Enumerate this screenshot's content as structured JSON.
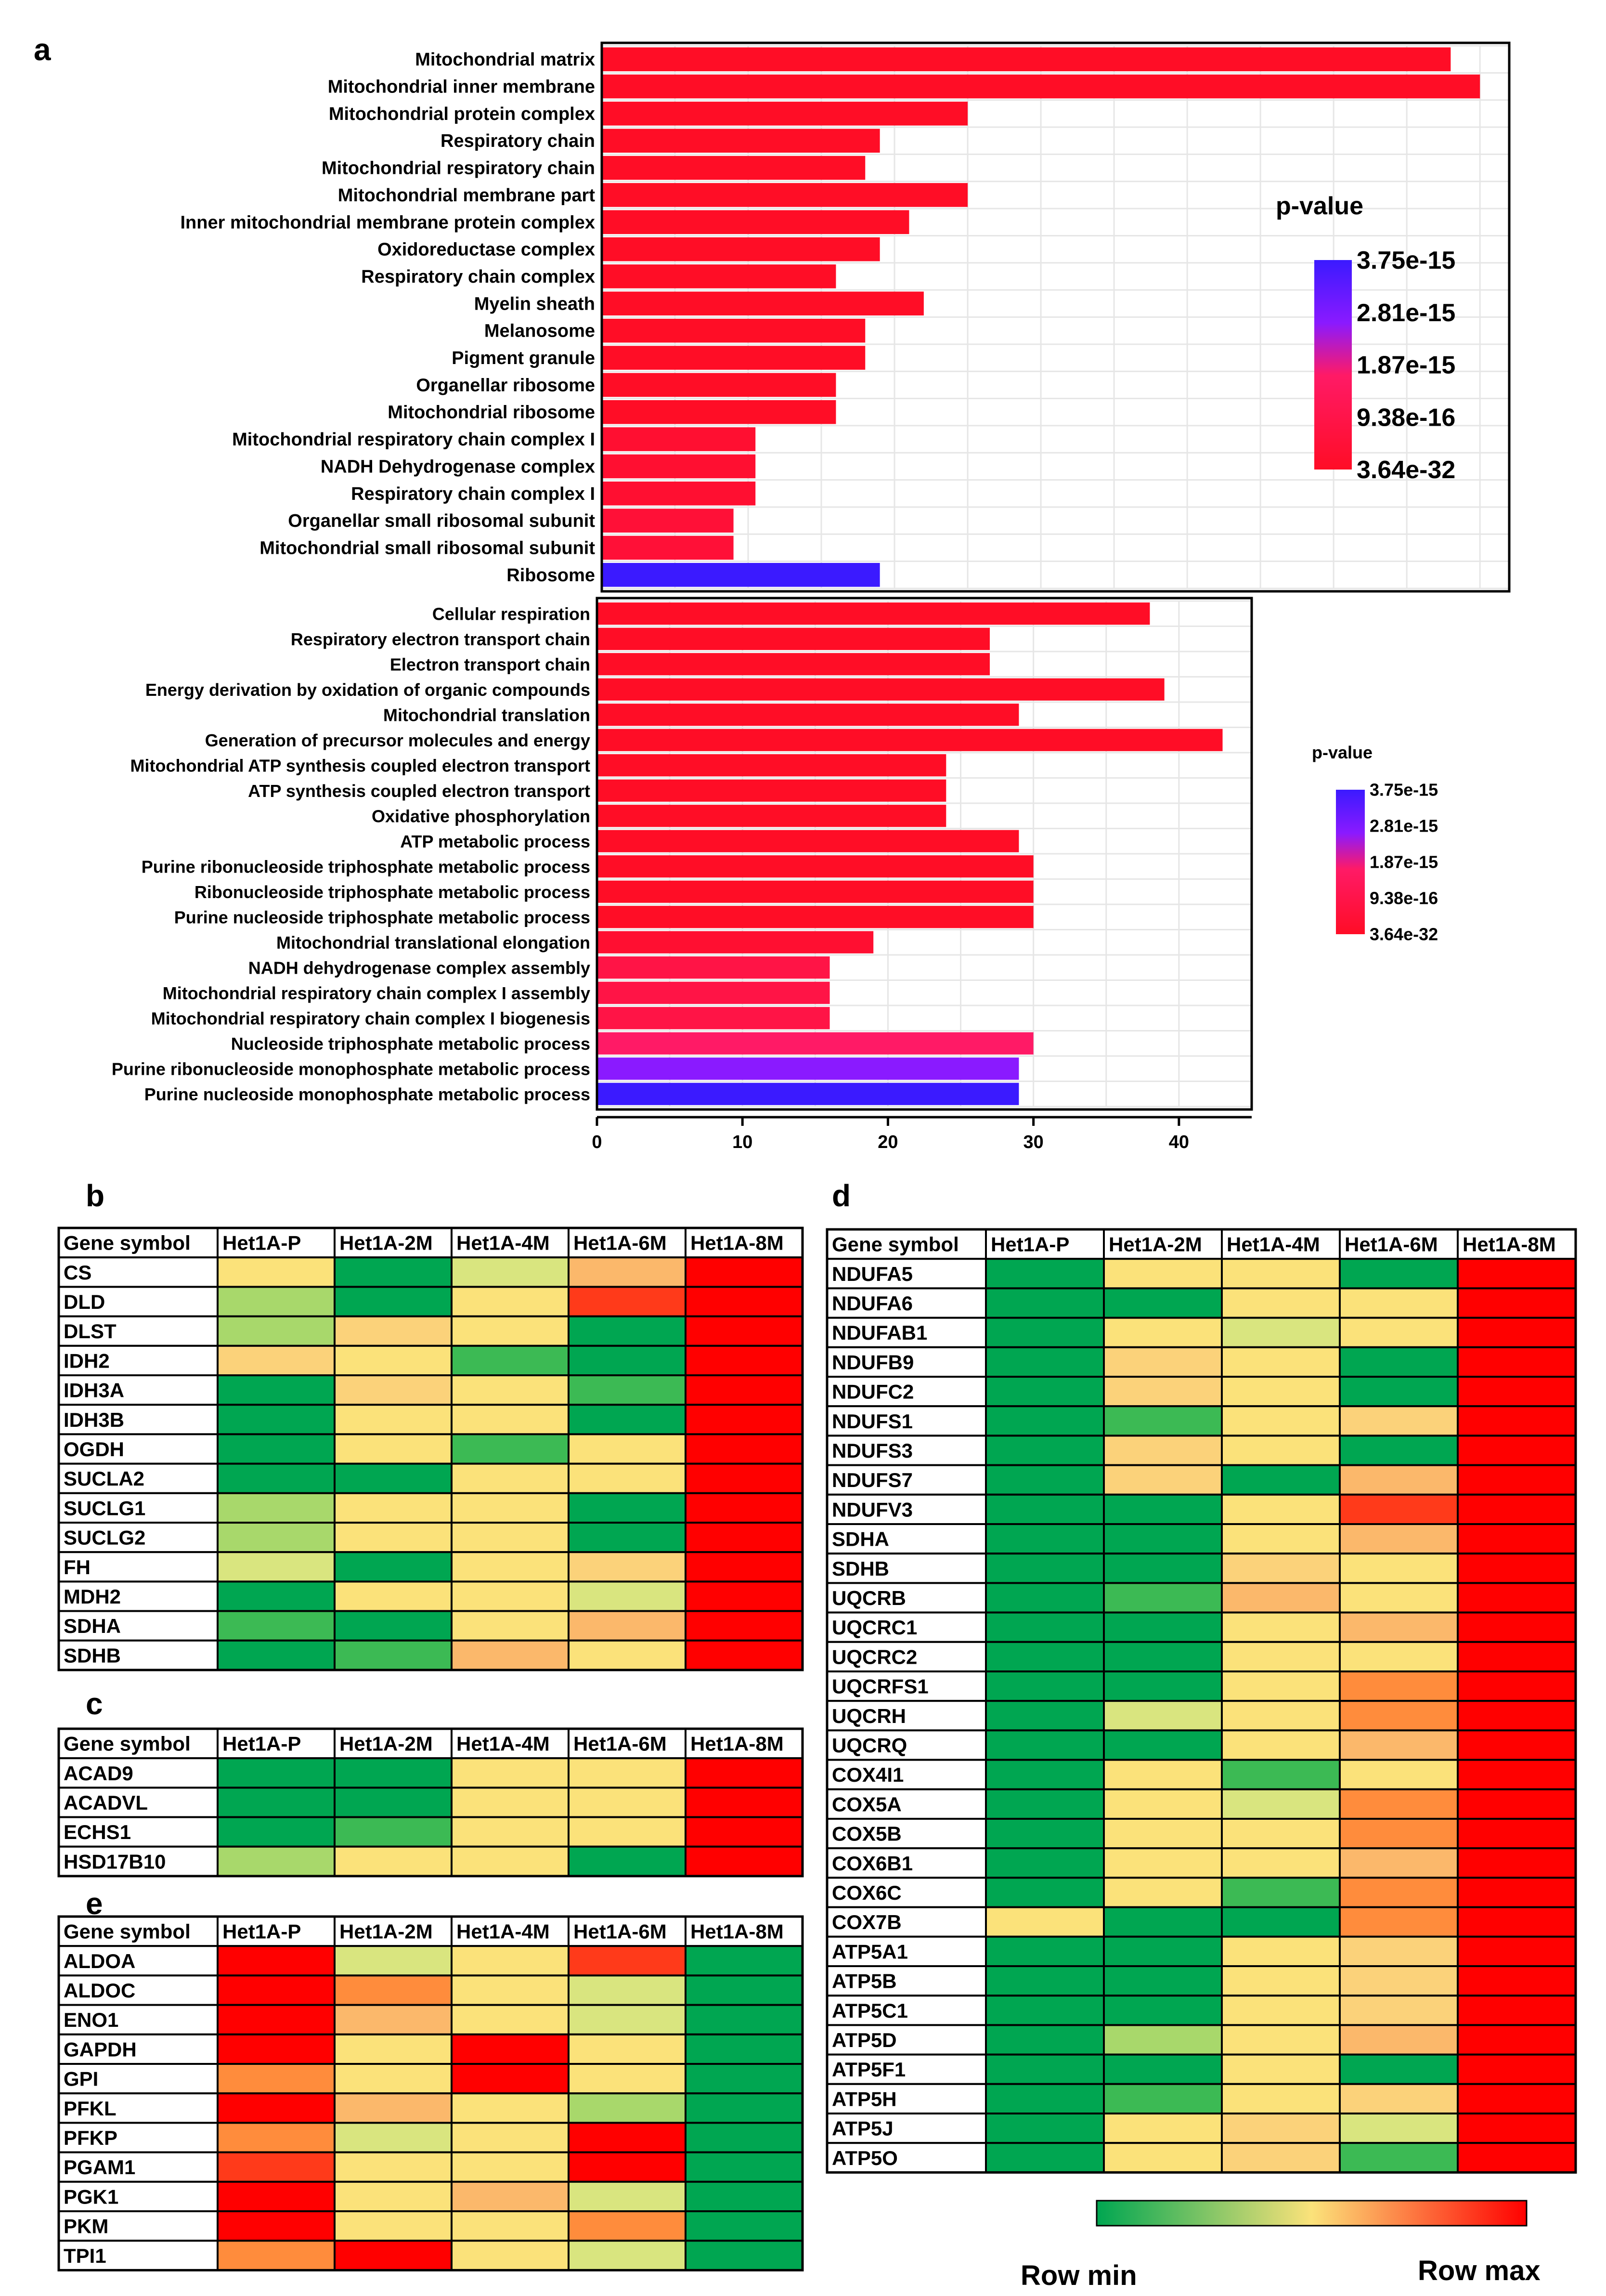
{
  "colors": {
    "p_low": "#ff0d26",
    "p_mid": "#ff1a66",
    "p_high": "#3b1aff",
    "p_purple": "#8a1aff",
    "grid": "#e6e6e6",
    "frame": "#000000",
    "heat_scale": [
      "#00a651",
      "#3cba54",
      "#a8d86b",
      "#d9e57f",
      "#fbe27a",
      "#fbd27a",
      "#fbb86b",
      "#ff8c3c",
      "#ff3a1a",
      "#ff0000"
    ]
  },
  "chart_data": [
    {
      "panel": "a",
      "type": "bar",
      "orientation": "horizontal",
      "title": "",
      "categories": [
        "Mitochondrial matrix",
        "Mitochondrial inner membrane",
        "Mitochondrial protein complex",
        "Respiratory chain",
        "Mitochondrial respiratory chain",
        "Mitochondrial membrane part",
        "Inner mitochondrial membrane protein complex",
        "Oxidoreductase complex",
        "Respiratory chain complex",
        "Myelin sheath",
        "Melanosome",
        "Pigment granule",
        "Organellar ribosome",
        "Mitochondrial ribosome",
        "Mitochondrial respiratory chain complex I",
        "NADH Dehydrogenase complex",
        "Respiratory chain complex I",
        "Organellar small ribosomal subunit",
        "Mitochondrial small ribosomal subunit",
        "Ribosome"
      ],
      "values": [
        58,
        60,
        25,
        19,
        18,
        25,
        21,
        19,
        16,
        22,
        18,
        18,
        16,
        16,
        10.5,
        10.5,
        10.5,
        9,
        9,
        19
      ],
      "pvalue_level": [
        0,
        0,
        0,
        0,
        0,
        0,
        0,
        0,
        0,
        0,
        0,
        0,
        0,
        0,
        0.05,
        0.05,
        0.05,
        0.08,
        0.08,
        1
      ],
      "xlim": [
        0,
        62
      ],
      "legend": {
        "title": "p-value",
        "labels": [
          "3.75e-15",
          "2.81e-15",
          "1.87e-15",
          "9.38e-16",
          "3.64e-32"
        ]
      }
    },
    {
      "panel": "a-lower",
      "type": "bar",
      "orientation": "horizontal",
      "title": "",
      "categories": [
        "Cellular respiration",
        "Respiratory electron transport chain",
        "Electron transport chain",
        "Energy derivation by oxidation of organic compounds",
        "Mitochondrial translation",
        "Generation of precursor molecules and energy",
        "Mitochondrial ATP synthesis coupled electron transport",
        "ATP synthesis coupled electron transport",
        "Oxidative phosphorylation",
        "ATP metabolic process",
        "Purine ribonucleoside triphosphate metabolic process",
        "Ribonucleoside triphosphate metabolic process",
        "Purine nucleoside triphosphate metabolic process",
        "Mitochondrial translational elongation",
        "NADH dehydrogenase complex assembly",
        "Mitochondrial respiratory chain complex I assembly",
        "Mitochondrial respiratory chain complex I biogenesis",
        "Nucleoside triphosphate metabolic process",
        "Purine ribonucleoside monophosphate metabolic process",
        "Purine nucleoside monophosphate metabolic process"
      ],
      "values": [
        38,
        27,
        27,
        39,
        29,
        43,
        24,
        24,
        24,
        29,
        30,
        30,
        30,
        19,
        16,
        16,
        16,
        30,
        29,
        29
      ],
      "pvalue_level": [
        0,
        0,
        0,
        0,
        0,
        0,
        0,
        0,
        0,
        0,
        0,
        0,
        0,
        0.05,
        0.15,
        0.15,
        0.15,
        0.3,
        0.75,
        1
      ],
      "xlim": [
        0,
        45
      ],
      "xticks": [
        0,
        10,
        20,
        30,
        40
      ],
      "legend": {
        "title": "p-value",
        "labels": [
          "3.75e-15",
          "2.81e-15",
          "1.87e-15",
          "9.38e-16",
          "3.64e-32"
        ]
      }
    },
    {
      "panel": "b",
      "type": "heatmap",
      "header": "Gene symbol",
      "columns": [
        "Het1A-P",
        "Het1A-2M",
        "Het1A-4M",
        "Het1A-6M",
        "Het1A-8M"
      ],
      "rows": [
        "CS",
        "DLD",
        "DLST",
        "IDH2",
        "IDH3A",
        "IDH3B",
        "OGDH",
        "SUCLA2",
        "SUCLG1",
        "SUCLG2",
        "FH",
        "MDH2",
        "SDHA",
        "SDHB"
      ],
      "values": [
        [
          4,
          0,
          3,
          6,
          9
        ],
        [
          2,
          0,
          4,
          8,
          9
        ],
        [
          2,
          5,
          4,
          0,
          9
        ],
        [
          5,
          4,
          1,
          0,
          9
        ],
        [
          0,
          5,
          4,
          1,
          9
        ],
        [
          0,
          4,
          4,
          0,
          9
        ],
        [
          0,
          4,
          1,
          4,
          9
        ],
        [
          0,
          0,
          4,
          4,
          9
        ],
        [
          2,
          4,
          4,
          0,
          9
        ],
        [
          2,
          4,
          4,
          0,
          9
        ],
        [
          3,
          0,
          4,
          5,
          9
        ],
        [
          0,
          4,
          4,
          3,
          9
        ],
        [
          1,
          0,
          4,
          6,
          9
        ],
        [
          0,
          1,
          6,
          4,
          9
        ]
      ]
    },
    {
      "panel": "c",
      "type": "heatmap",
      "header": "Gene symbol",
      "columns": [
        "Het1A-P",
        "Het1A-2M",
        "Het1A-4M",
        "Het1A-6M",
        "Het1A-8M"
      ],
      "rows": [
        "ACAD9",
        "ACADVL",
        "ECHS1",
        "HSD17B10"
      ],
      "values": [
        [
          0,
          0,
          4,
          4,
          9
        ],
        [
          0,
          0,
          4,
          4,
          9
        ],
        [
          0,
          1,
          4,
          4,
          9
        ],
        [
          2,
          4,
          4,
          0,
          9
        ]
      ]
    },
    {
      "panel": "d",
      "type": "heatmap",
      "header": "Gene symbol",
      "columns": [
        "Het1A-P",
        "Het1A-2M",
        "Het1A-4M",
        "Het1A-6M",
        "Het1A-8M"
      ],
      "rows": [
        "NDUFA5",
        "NDUFA6",
        "NDUFAB1",
        "NDUFB9",
        "NDUFC2",
        "NDUFS1",
        "NDUFS3",
        "NDUFS7",
        "NDUFV3",
        "SDHA",
        "SDHB",
        "UQCRB",
        "UQCRC1",
        "UQCRC2",
        "UQCRFS1",
        "UQCRH",
        "UQCRQ",
        "COX4I1",
        "COX5A",
        "COX5B",
        "COX6B1",
        "COX6C",
        "COX7B",
        "ATP5A1",
        "ATP5B",
        "ATP5C1",
        "ATP5D",
        "ATP5F1",
        "ATP5H",
        "ATP5J",
        "ATP5O"
      ],
      "values": [
        [
          0,
          4,
          4,
          0,
          9
        ],
        [
          0,
          0,
          4,
          4,
          9
        ],
        [
          0,
          4,
          3,
          4,
          9
        ],
        [
          0,
          5,
          4,
          0,
          9
        ],
        [
          0,
          5,
          4,
          0,
          9
        ],
        [
          0,
          1,
          4,
          5,
          9
        ],
        [
          0,
          5,
          4,
          0,
          9
        ],
        [
          0,
          5,
          0,
          6,
          9
        ],
        [
          0,
          0,
          4,
          8,
          9
        ],
        [
          0,
          0,
          4,
          6,
          9
        ],
        [
          0,
          0,
          5,
          4,
          9
        ],
        [
          0,
          1,
          6,
          4,
          9
        ],
        [
          0,
          0,
          4,
          6,
          9
        ],
        [
          0,
          0,
          4,
          4,
          9
        ],
        [
          0,
          0,
          4,
          7,
          9
        ],
        [
          0,
          3,
          4,
          7,
          9
        ],
        [
          0,
          0,
          4,
          6,
          9
        ],
        [
          0,
          4,
          1,
          4,
          9
        ],
        [
          0,
          4,
          3,
          7,
          9
        ],
        [
          0,
          4,
          4,
          7,
          9
        ],
        [
          0,
          4,
          4,
          6,
          9
        ],
        [
          0,
          4,
          1,
          7,
          9
        ],
        [
          4,
          0,
          0,
          7,
          9
        ],
        [
          0,
          0,
          4,
          5,
          9
        ],
        [
          0,
          0,
          4,
          5,
          9
        ],
        [
          0,
          0,
          4,
          5,
          9
        ],
        [
          0,
          2,
          4,
          6,
          9
        ],
        [
          0,
          0,
          4,
          0,
          9
        ],
        [
          0,
          1,
          4,
          5,
          9
        ],
        [
          0,
          4,
          5,
          3,
          9
        ],
        [
          0,
          4,
          5,
          1,
          9
        ]
      ],
      "scale_labels": {
        "min": "Row min",
        "max": "Row max"
      }
    },
    {
      "panel": "e",
      "type": "heatmap",
      "header": "Gene symbol",
      "columns": [
        "Het1A-P",
        "Het1A-2M",
        "Het1A-4M",
        "Het1A-6M",
        "Het1A-8M"
      ],
      "rows": [
        "ALDOA",
        "ALDOC",
        "ENO1",
        "GAPDH",
        "GPI",
        "PFKL",
        "PFKP",
        "PGAM1",
        "PGK1",
        "PKM",
        "TPI1"
      ],
      "values": [
        [
          9,
          3,
          4,
          8,
          0
        ],
        [
          9,
          7,
          4,
          3,
          0
        ],
        [
          9,
          6,
          4,
          3,
          0
        ],
        [
          9,
          4,
          9,
          4,
          0
        ],
        [
          7,
          4,
          9,
          4,
          0
        ],
        [
          9,
          6,
          4,
          2,
          0
        ],
        [
          7,
          3,
          4,
          9,
          0
        ],
        [
          8,
          4,
          4,
          9,
          0
        ],
        [
          9,
          4,
          6,
          3,
          0
        ],
        [
          9,
          4,
          4,
          7,
          0
        ],
        [
          7,
          9,
          4,
          3,
          0
        ]
      ]
    }
  ],
  "panel_labels": {
    "a": "a",
    "b": "b",
    "c": "c",
    "d": "d",
    "e": "e"
  }
}
